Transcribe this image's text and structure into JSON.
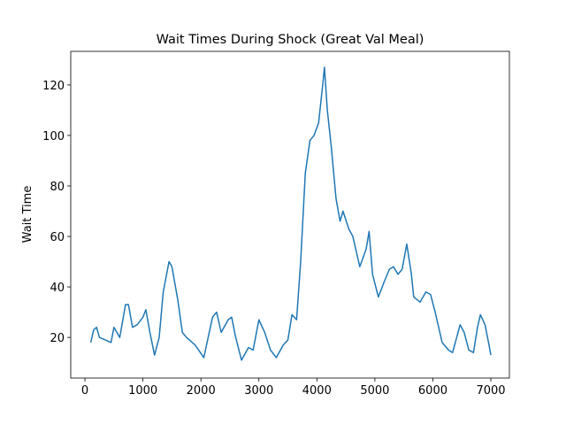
{
  "chart_data": {
    "type": "line",
    "title": "Wait Times During Shock (Great Val Meal)",
    "y_label": "Wait Time",
    "x": [
      100,
      150,
      200,
      250,
      350,
      450,
      500,
      550,
      600,
      700,
      750,
      820,
      900,
      1000,
      1050,
      1120,
      1200,
      1280,
      1350,
      1450,
      1500,
      1600,
      1680,
      1750,
      1900,
      2050,
      2200,
      2270,
      2350,
      2470,
      2530,
      2600,
      2700,
      2820,
      2900,
      3000,
      3100,
      3200,
      3300,
      3420,
      3500,
      3570,
      3650,
      3720,
      3800,
      3880,
      3950,
      4030,
      4100,
      4130,
      4180,
      4250,
      4330,
      4400,
      4450,
      4550,
      4620,
      4740,
      4850,
      4900,
      4960,
      5060,
      5160,
      5250,
      5320,
      5400,
      5470,
      5550,
      5630,
      5670,
      5780,
      5880,
      5960,
      6040,
      6160,
      6270,
      6340,
      6470,
      6540,
      6620,
      6700,
      6770,
      6820,
      6900,
      6960,
      7000
    ],
    "series": [
      {
        "name": "Wait Time",
        "color": "#1f77b4",
        "values": [
          18,
          23,
          24,
          20,
          19,
          18,
          24,
          22,
          20,
          33,
          33,
          24,
          25,
          28,
          31,
          22,
          13,
          20,
          38,
          50,
          48,
          35,
          22,
          20,
          17,
          12,
          28,
          30,
          22,
          27,
          28,
          20,
          11,
          16,
          15,
          27,
          22,
          15,
          12,
          17,
          19,
          29,
          27,
          50,
          85,
          98,
          100,
          105,
          120,
          127,
          110,
          95,
          75,
          66,
          70,
          63,
          60,
          48,
          55,
          62,
          45,
          36,
          42,
          47,
          48,
          45,
          47,
          57,
          45,
          36,
          34,
          38,
          37,
          30,
          18,
          15,
          14,
          25,
          22,
          15,
          14,
          24,
          29,
          25,
          18,
          13
        ]
      }
    ],
    "xlim": [
      -245,
      7320
    ],
    "ylim": [
      3.9,
      133.3
    ],
    "xticks": [
      0,
      1000,
      2000,
      3000,
      4000,
      5000,
      6000,
      7000
    ],
    "yticks": [
      20,
      40,
      60,
      80,
      100,
      120
    ]
  }
}
